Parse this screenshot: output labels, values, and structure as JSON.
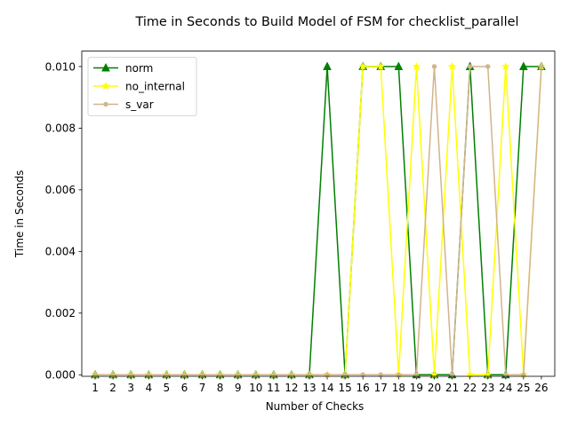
{
  "chart_data": {
    "type": "line",
    "title": "Time in Seconds to Build Model of FSM for checklist_parallel",
    "xlabel": "Number of Checks",
    "ylabel": "Time in Seconds",
    "x": [
      1,
      2,
      3,
      4,
      5,
      6,
      7,
      8,
      9,
      10,
      11,
      12,
      13,
      14,
      15,
      16,
      17,
      18,
      19,
      20,
      21,
      22,
      23,
      24,
      25,
      26
    ],
    "y_ticks": [
      "0.000",
      "0.002",
      "0.004",
      "0.006",
      "0.008",
      "0.010"
    ],
    "ylim": [
      -5e-05,
      0.0105
    ],
    "xlim": [
      0.25,
      26.75
    ],
    "legend_position": "top-left",
    "grid": false,
    "series": [
      {
        "name": "norm",
        "color": "#008000",
        "marker": "triangle",
        "values": [
          0,
          0,
          0,
          0,
          0,
          0,
          0,
          0,
          0,
          0,
          0,
          0,
          0,
          0.01,
          0,
          0.01,
          0.01,
          0.01,
          0,
          0,
          0,
          0.01,
          0,
          0,
          0.01,
          0.01
        ]
      },
      {
        "name": "no_internal",
        "color": "#ffff00",
        "marker": "star",
        "values": [
          0,
          0,
          0,
          0,
          0,
          0,
          0,
          0,
          0,
          0,
          0,
          0,
          0,
          0,
          0,
          0.01,
          0.01,
          0,
          0.01,
          0,
          0.01,
          0,
          0,
          0.01,
          0,
          0.01
        ]
      },
      {
        "name": "s_var",
        "color": "#d2b48c",
        "marker": "circle",
        "values": [
          0,
          0,
          0,
          0,
          0,
          0,
          0,
          0,
          0,
          0,
          0,
          0,
          0,
          0,
          0,
          0,
          0,
          0,
          0,
          0.01,
          0,
          0.01,
          0.01,
          0,
          0,
          0.01
        ]
      }
    ]
  }
}
